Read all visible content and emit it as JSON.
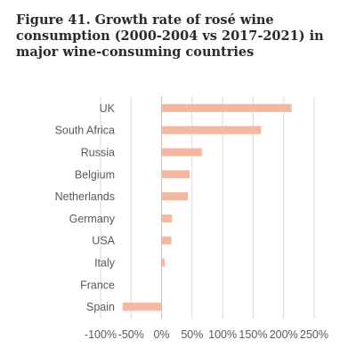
{
  "title": "Figure 41. Growth rate of rosé wine consumption (2000-2004 vs 2017-2021) in major wine-consuming countries",
  "colors": {
    "bar": "#f4b8a0",
    "grid": "#d9d9d9",
    "axis": "#bfbfbf",
    "text": "#595959",
    "title": "#2a2a2a"
  },
  "chart_data": {
    "type": "bar",
    "orientation": "horizontal",
    "title": "Figure 41. Growth rate of rosé wine consumption (2000-2004 vs 2017-2021) in major wine-consuming countries",
    "xlabel": "",
    "ylabel": "",
    "categories": [
      "UK",
      "South Africa",
      "Russia",
      "Belgium",
      "Netherlands",
      "Germany",
      "USA",
      "Italy",
      "France",
      "Spain"
    ],
    "values": [
      213,
      163,
      66,
      46,
      43,
      17,
      16,
      5,
      0,
      -64
    ],
    "unit": "%",
    "xlim": [
      -100,
      250
    ],
    "xticks": [
      -100,
      -50,
      0,
      50,
      100,
      150,
      200,
      250
    ],
    "xtick_labels": [
      "-100%",
      "-50%",
      "0%",
      "50%",
      "100%",
      "150%",
      "200%",
      "250%"
    ],
    "grid": "vertical",
    "legend": "none"
  }
}
